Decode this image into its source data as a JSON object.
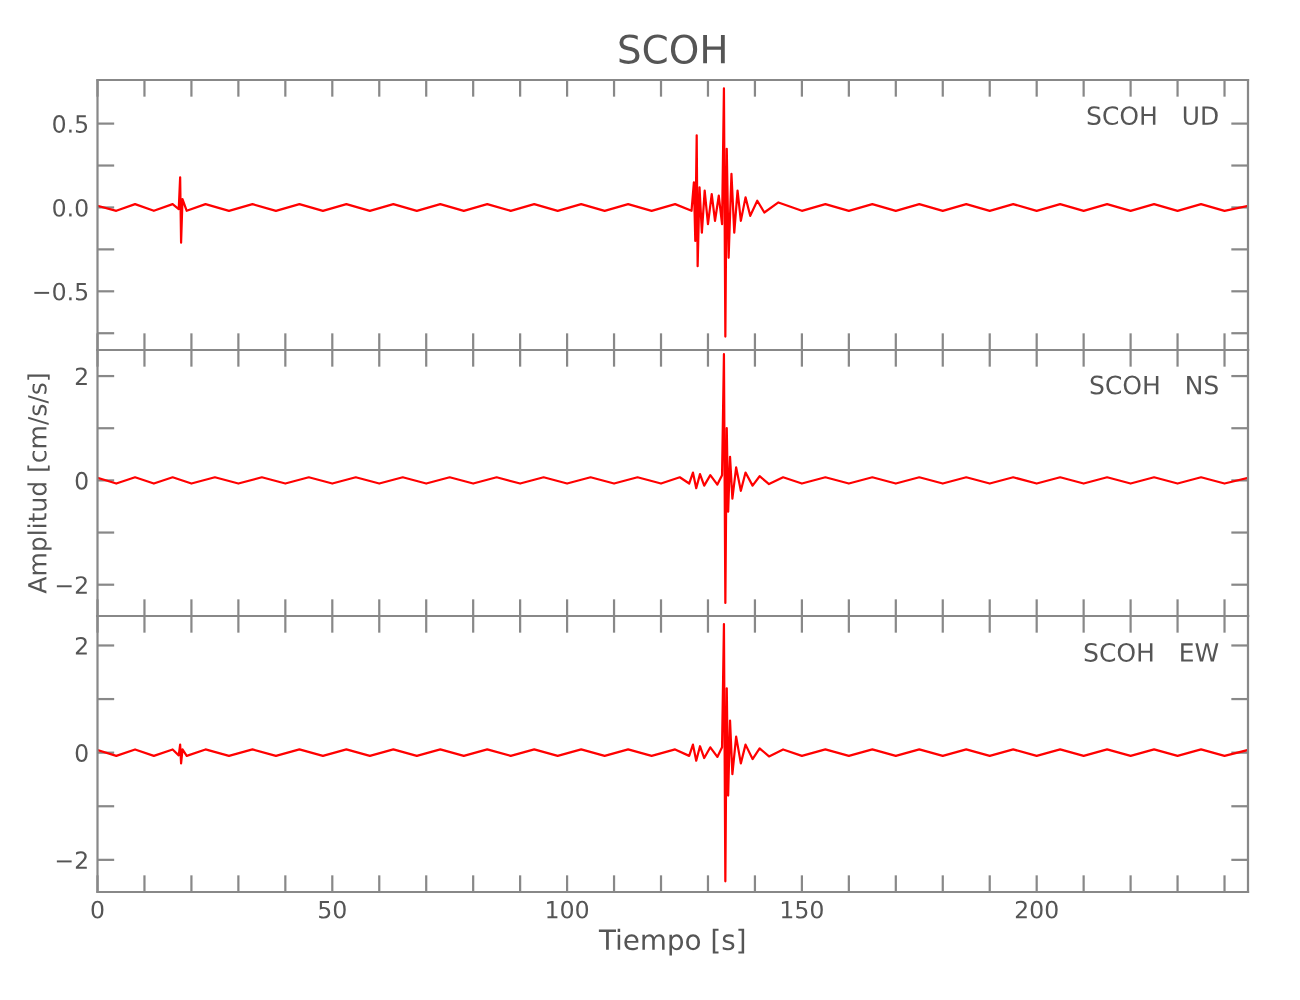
{
  "chart_data": [
    {
      "type": "line",
      "title": "SCOH",
      "annotations": [
        "SCOH   UD"
      ],
      "tick_labels": "y",
      "grid": false,
      "legend": false,
      "xlim": [
        0,
        245
      ],
      "xticks": [
        0,
        {
          "value": 10,
          "label": null
        },
        {
          "value": 20,
          "label": null
        },
        {
          "value": 30,
          "label": null
        },
        {
          "value": 40,
          "label": null
        },
        50,
        {
          "value": 60,
          "label": null
        },
        {
          "value": 70,
          "label": null
        },
        {
          "value": 80,
          "label": null
        },
        {
          "value": 90,
          "label": null
        },
        100,
        {
          "value": 110,
          "label": null
        },
        {
          "value": 120,
          "label": null
        },
        {
          "value": 130,
          "label": null
        },
        {
          "value": 140,
          "label": null
        },
        150,
        {
          "value": 160,
          "label": null
        },
        {
          "value": 170,
          "label": null
        },
        {
          "value": 180,
          "label": null
        },
        {
          "value": 190,
          "label": null
        },
        200,
        {
          "value": 210,
          "label": null
        },
        {
          "value": 220,
          "label": null
        },
        {
          "value": 230,
          "label": null
        },
        {
          "value": 240,
          "label": null
        }
      ],
      "ylim": [
        -0.85,
        0.76
      ],
      "yticks": [
        {
          "value": -0.75,
          "label": null
        },
        {
          "value": -0.5,
          "label": "−0.5"
        },
        {
          "value": -0.25,
          "label": null
        },
        {
          "value": 0,
          "label": "0.0"
        },
        {
          "value": 0.25,
          "label": null
        },
        {
          "value": 0.5,
          "label": "0.5"
        }
      ],
      "series": [
        {
          "color": "#ff0000",
          "x": [
            0,
            4,
            8,
            12,
            16,
            17.3,
            17.6,
            17.8,
            18.1,
            19,
            23,
            28,
            33,
            38,
            43,
            48,
            53,
            58,
            63,
            68,
            73,
            78,
            83,
            88,
            93,
            98,
            103,
            108,
            113,
            118,
            123,
            126.5,
            127,
            127.3,
            127.6,
            127.8,
            128.2,
            128.7,
            129.3,
            130,
            130.8,
            131.5,
            132.3,
            133,
            133.4,
            133.7,
            134,
            134.4,
            135,
            135.6,
            136.3,
            137,
            138,
            139,
            140.5,
            142,
            145,
            150,
            155,
            160,
            165,
            170,
            175,
            180,
            185,
            190,
            195,
            200,
            205,
            210,
            215,
            220,
            225,
            230,
            235,
            240,
            245
          ],
          "values": [
            0.01,
            -0.02,
            0.02,
            -0.02,
            0.02,
            -0.01,
            0.18,
            -0.21,
            0.05,
            -0.02,
            0.02,
            -0.02,
            0.02,
            -0.02,
            0.02,
            -0.02,
            0.02,
            -0.02,
            0.02,
            -0.02,
            0.02,
            -0.02,
            0.02,
            -0.02,
            0.02,
            -0.02,
            0.02,
            -0.02,
            0.02,
            -0.02,
            0.02,
            -0.02,
            0.15,
            -0.2,
            0.43,
            -0.35,
            0.12,
            -0.15,
            0.1,
            -0.1,
            0.08,
            -0.08,
            0.07,
            -0.1,
            0.71,
            -0.77,
            0.35,
            -0.3,
            0.2,
            -0.15,
            0.1,
            -0.08,
            0.06,
            -0.05,
            0.04,
            -0.03,
            0.03,
            -0.02,
            0.02,
            -0.02,
            0.02,
            -0.02,
            0.02,
            -0.02,
            0.02,
            -0.02,
            0.02,
            -0.02,
            0.02,
            -0.02,
            0.02,
            -0.02,
            0.02,
            -0.02,
            0.02,
            -0.02,
            0.01
          ]
        }
      ]
    },
    {
      "type": "line",
      "ylabel": "Amplitud [cm/s/s]",
      "annotations": [
        "SCOH   NS"
      ],
      "tick_labels": "y",
      "grid": false,
      "legend": false,
      "xlim": [
        0,
        245
      ],
      "xticks": [
        0,
        {
          "value": 10,
          "label": null
        },
        {
          "value": 20,
          "label": null
        },
        {
          "value": 30,
          "label": null
        },
        {
          "value": 40,
          "label": null
        },
        50,
        {
          "value": 60,
          "label": null
        },
        {
          "value": 70,
          "label": null
        },
        {
          "value": 80,
          "label": null
        },
        {
          "value": 90,
          "label": null
        },
        100,
        {
          "value": 110,
          "label": null
        },
        {
          "value": 120,
          "label": null
        },
        {
          "value": 130,
          "label": null
        },
        {
          "value": 140,
          "label": null
        },
        150,
        {
          "value": 160,
          "label": null
        },
        {
          "value": 170,
          "label": null
        },
        {
          "value": 180,
          "label": null
        },
        {
          "value": 190,
          "label": null
        },
        200,
        {
          "value": 210,
          "label": null
        },
        {
          "value": 220,
          "label": null
        },
        {
          "value": 230,
          "label": null
        },
        {
          "value": 240,
          "label": null
        }
      ],
      "ylim": [
        -2.6,
        2.5
      ],
      "yticks": [
        {
          "value": -2,
          "label": "−2"
        },
        {
          "value": -1,
          "label": null
        },
        {
          "value": 0,
          "label": "0"
        },
        {
          "value": 1,
          "label": null
        },
        {
          "value": 2,
          "label": "2"
        }
      ],
      "series": [
        {
          "color": "#ff0000",
          "x": [
            0,
            4,
            8,
            12,
            16,
            20,
            25,
            30,
            35,
            40,
            45,
            50,
            55,
            60,
            65,
            70,
            75,
            80,
            85,
            90,
            95,
            100,
            105,
            110,
            115,
            120,
            124,
            126,
            126.8,
            127.5,
            128.3,
            129.2,
            130.5,
            132,
            133,
            133.4,
            133.7,
            134,
            134.3,
            134.7,
            135.2,
            136,
            137,
            138,
            139.5,
            141,
            143,
            146,
            150,
            155,
            160,
            165,
            170,
            175,
            180,
            185,
            190,
            195,
            200,
            205,
            210,
            215,
            220,
            225,
            230,
            235,
            240,
            245
          ],
          "values": [
            0.05,
            -0.06,
            0.06,
            -0.06,
            0.06,
            -0.06,
            0.06,
            -0.06,
            0.06,
            -0.06,
            0.06,
            -0.06,
            0.06,
            -0.06,
            0.06,
            -0.06,
            0.06,
            -0.06,
            0.06,
            -0.06,
            0.06,
            -0.06,
            0.06,
            -0.06,
            0.06,
            -0.06,
            0.06,
            -0.06,
            0.15,
            -0.15,
            0.12,
            -0.1,
            0.1,
            -0.08,
            0.1,
            2.42,
            -2.35,
            1.0,
            -0.6,
            0.45,
            -0.35,
            0.25,
            -0.2,
            0.15,
            -0.1,
            0.08,
            -0.07,
            0.06,
            -0.06,
            0.06,
            -0.06,
            0.06,
            -0.06,
            0.06,
            -0.06,
            0.06,
            -0.06,
            0.06,
            -0.06,
            0.06,
            -0.06,
            0.06,
            -0.06,
            0.06,
            -0.06,
            0.06,
            -0.06,
            0.05
          ]
        }
      ]
    },
    {
      "type": "line",
      "xlabel": "Tiempo [s]",
      "annotations": [
        "SCOH   EW"
      ],
      "grid": false,
      "legend": false,
      "xlim": [
        0,
        245
      ],
      "xticks": [
        0,
        {
          "value": 10,
          "label": null
        },
        {
          "value": 20,
          "label": null
        },
        {
          "value": 30,
          "label": null
        },
        {
          "value": 40,
          "label": null
        },
        50,
        {
          "value": 60,
          "label": null
        },
        {
          "value": 70,
          "label": null
        },
        {
          "value": 80,
          "label": null
        },
        {
          "value": 90,
          "label": null
        },
        100,
        {
          "value": 110,
          "label": null
        },
        {
          "value": 120,
          "label": null
        },
        {
          "value": 130,
          "label": null
        },
        {
          "value": 140,
          "label": null
        },
        150,
        {
          "value": 160,
          "label": null
        },
        {
          "value": 170,
          "label": null
        },
        {
          "value": 180,
          "label": null
        },
        {
          "value": 190,
          "label": null
        },
        200,
        {
          "value": 210,
          "label": null
        },
        {
          "value": 220,
          "label": null
        },
        {
          "value": 230,
          "label": null
        },
        {
          "value": 240,
          "label": null
        }
      ],
      "ylim": [
        -2.6,
        2.55
      ],
      "yticks": [
        {
          "value": -2,
          "label": "−2"
        },
        {
          "value": -1,
          "label": null
        },
        {
          "value": 0,
          "label": "0"
        },
        {
          "value": 1,
          "label": null
        },
        {
          "value": 2,
          "label": "2"
        }
      ],
      "series": [
        {
          "color": "#ff0000",
          "x": [
            0,
            4,
            8,
            12,
            16,
            17.3,
            17.6,
            17.8,
            18.1,
            19,
            23,
            28,
            33,
            38,
            43,
            48,
            53,
            58,
            63,
            68,
            73,
            78,
            83,
            88,
            93,
            98,
            103,
            108,
            113,
            118,
            123,
            126,
            126.8,
            127.5,
            128.3,
            129.2,
            130.5,
            132,
            133,
            133.4,
            133.7,
            134,
            134.3,
            134.7,
            135.2,
            136,
            137,
            138,
            139.5,
            141,
            143,
            146,
            150,
            155,
            160,
            165,
            170,
            175,
            180,
            185,
            190,
            195,
            200,
            205,
            210,
            215,
            220,
            225,
            230,
            235,
            240,
            245
          ],
          "values": [
            0.05,
            -0.06,
            0.06,
            -0.06,
            0.06,
            -0.05,
            0.15,
            -0.2,
            0.06,
            -0.06,
            0.06,
            -0.06,
            0.06,
            -0.06,
            0.06,
            -0.06,
            0.06,
            -0.06,
            0.06,
            -0.06,
            0.06,
            -0.06,
            0.06,
            -0.06,
            0.06,
            -0.06,
            0.06,
            -0.06,
            0.06,
            -0.06,
            0.06,
            -0.06,
            0.15,
            -0.15,
            0.12,
            -0.1,
            0.1,
            -0.08,
            0.1,
            2.4,
            -2.4,
            1.2,
            -0.8,
            0.6,
            -0.4,
            0.3,
            -0.2,
            0.15,
            -0.12,
            0.08,
            -0.07,
            0.06,
            -0.06,
            0.06,
            -0.06,
            0.06,
            -0.06,
            0.06,
            -0.06,
            0.06,
            -0.06,
            0.06,
            -0.06,
            0.06,
            -0.06,
            0.06,
            -0.06,
            0.06,
            -0.06,
            0.06,
            -0.06,
            0.05
          ]
        }
      ]
    }
  ]
}
